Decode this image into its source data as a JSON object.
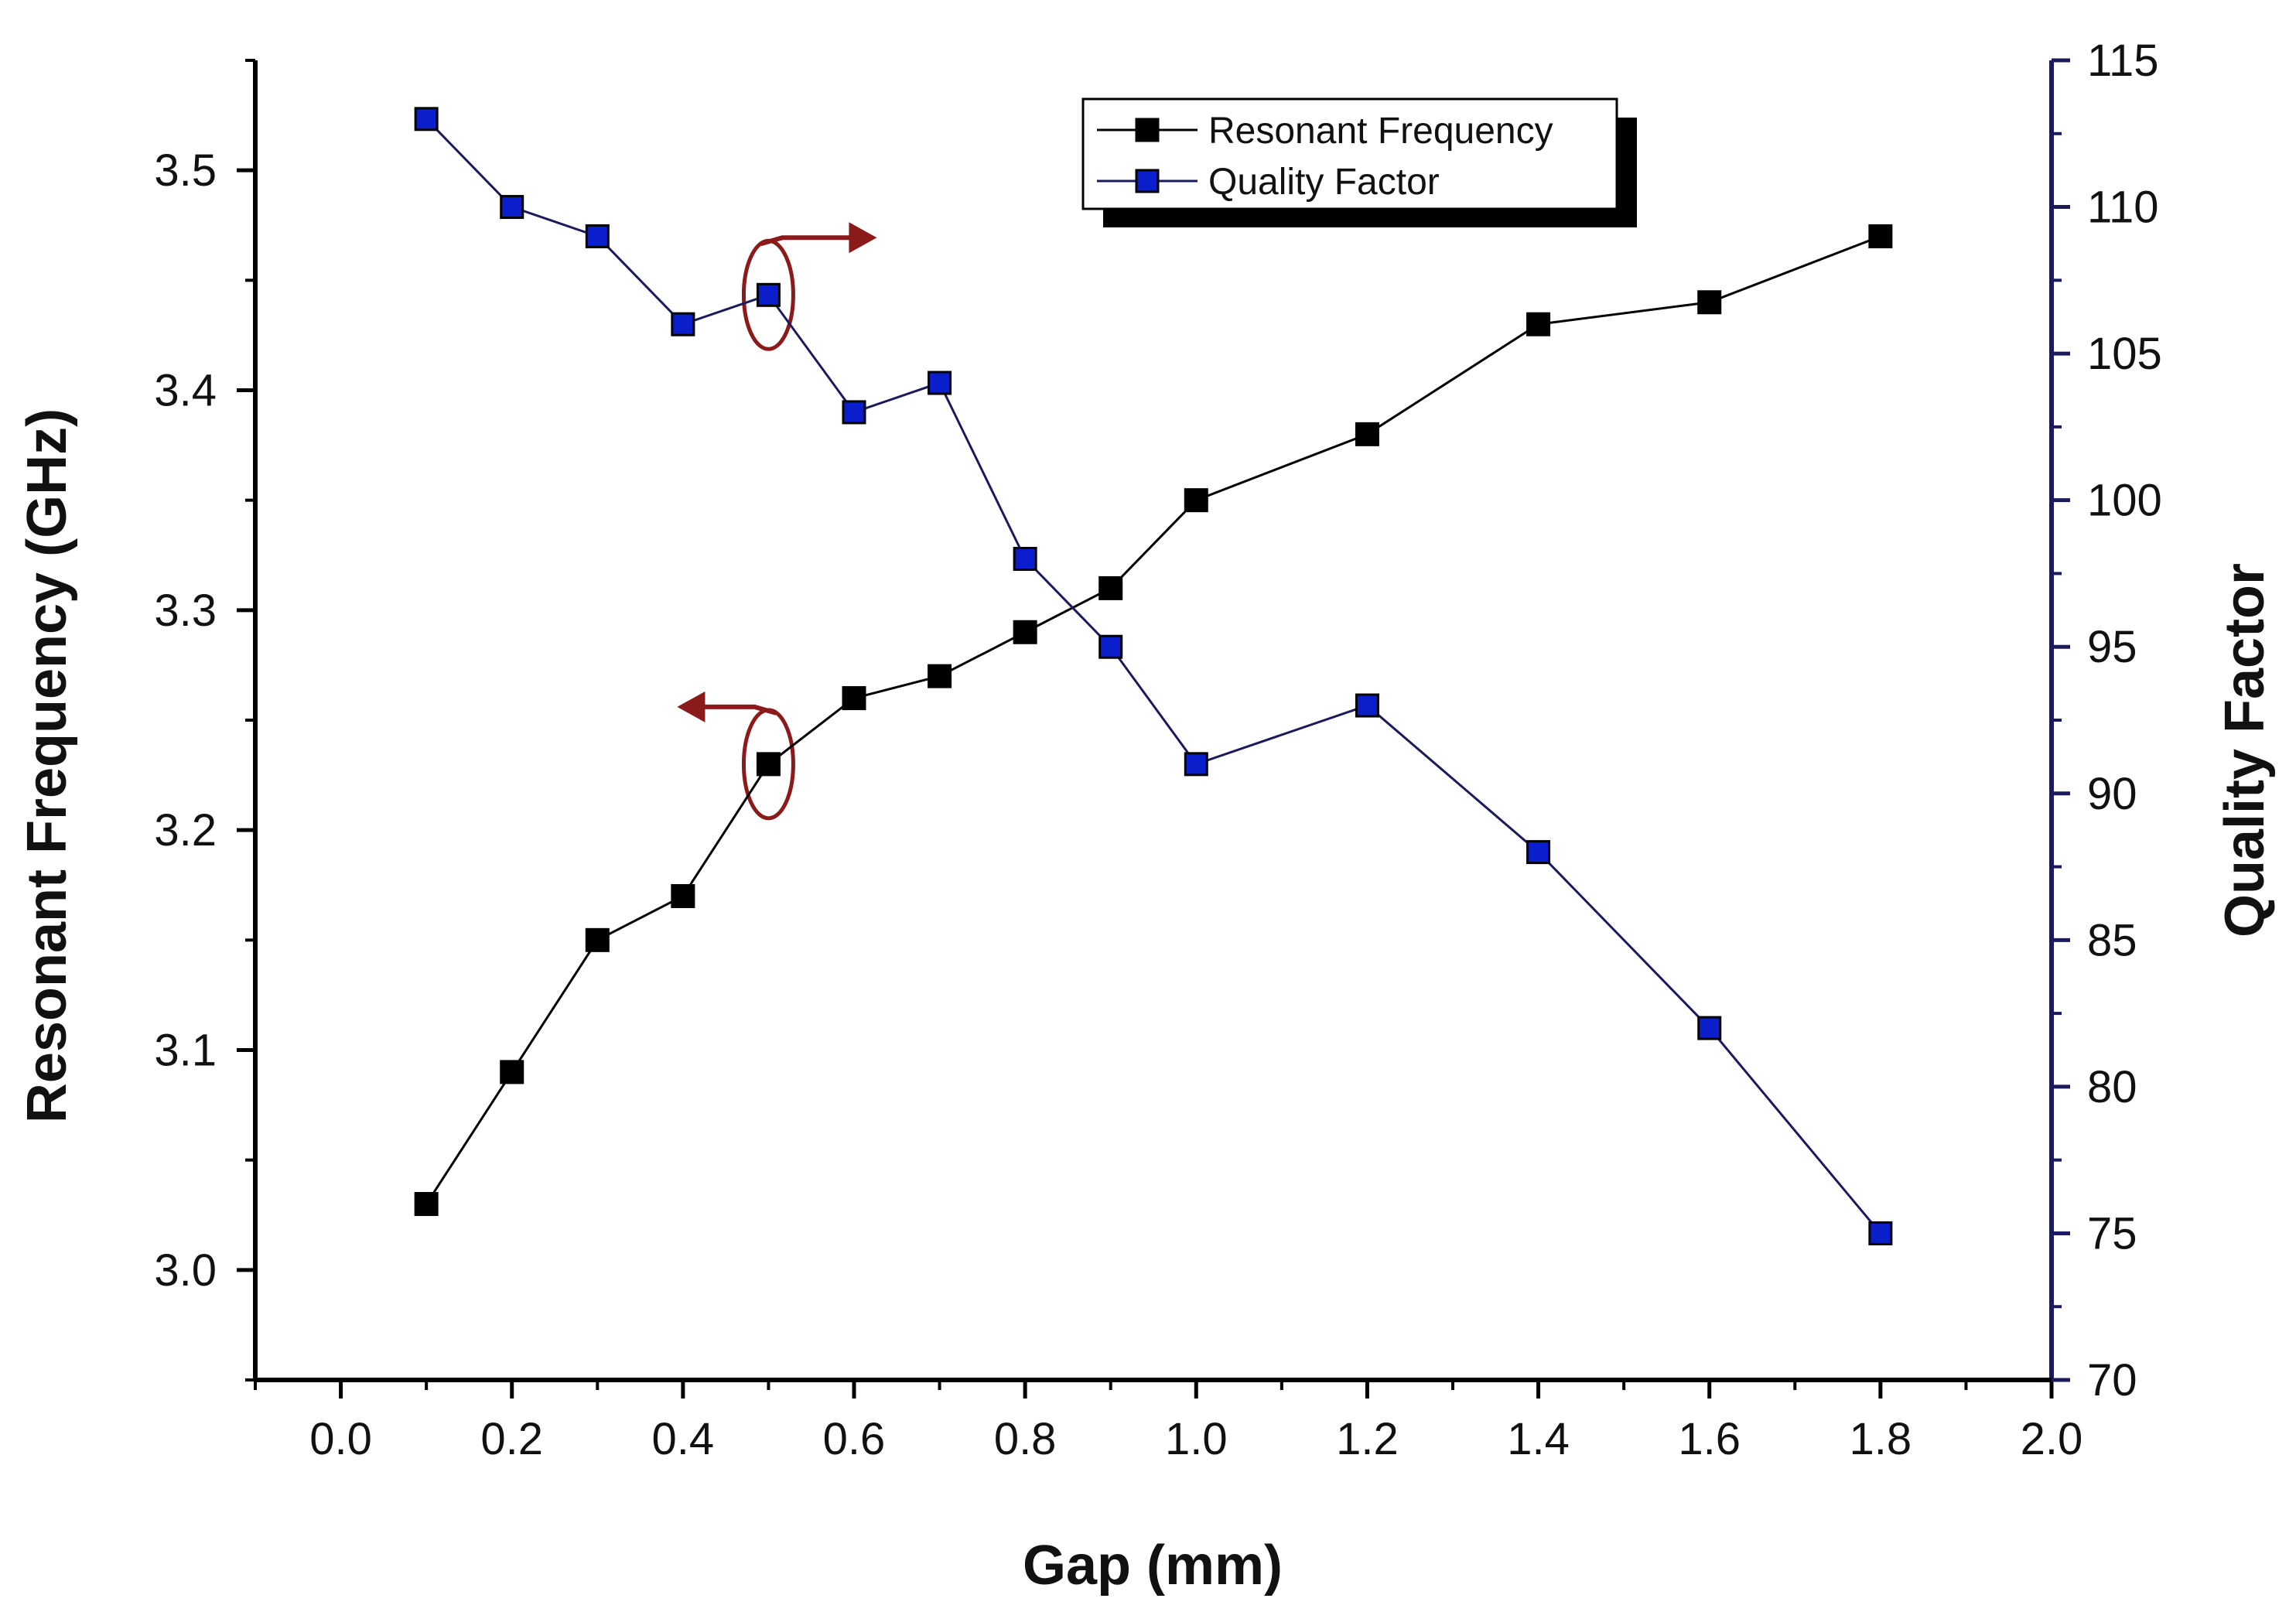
{
  "chart_data": {
    "type": "line",
    "title": "",
    "xlabel": "Gap (mm)",
    "ylabel": "Resonant Frequency (GHz)",
    "y2label": "Quality Factor",
    "xlim": [
      -0.1,
      2.0
    ],
    "ylim": [
      2.95,
      3.55
    ],
    "y2lim": [
      70,
      115
    ],
    "x_ticks": [
      0.0,
      0.2,
      0.4,
      0.6,
      0.8,
      1.0,
      1.2,
      1.4,
      1.6,
      1.8,
      2.0
    ],
    "x_tick_labels": [
      "0.0",
      "0.2",
      "0.4",
      "0.6",
      "0.8",
      "1.0",
      "1.2",
      "1.4",
      "1.6",
      "1.8",
      "2.0"
    ],
    "y_ticks": [
      3.0,
      3.1,
      3.2,
      3.3,
      3.4,
      3.5
    ],
    "y_tick_labels": [
      "3.0",
      "3.1",
      "3.2",
      "3.3",
      "3.4",
      "3.5"
    ],
    "y2_ticks": [
      70,
      75,
      80,
      85,
      90,
      95,
      100,
      105,
      110,
      115
    ],
    "y2_tick_labels": [
      "70",
      "75",
      "80",
      "85",
      "90",
      "95",
      "100",
      "105",
      "110",
      "115"
    ],
    "grid": false,
    "legend_position": "top-right",
    "series": [
      {
        "name": "Resonant Frequency",
        "axis": "left",
        "color": "#000000",
        "marker_color": "#000000",
        "x": [
          0.1,
          0.2,
          0.3,
          0.4,
          0.5,
          0.6,
          0.7,
          0.8,
          0.9,
          1.0,
          1.2,
          1.4,
          1.6,
          1.8
        ],
        "values": [
          3.03,
          3.09,
          3.15,
          3.17,
          3.23,
          3.26,
          3.27,
          3.29,
          3.31,
          3.35,
          3.38,
          3.43,
          3.44,
          3.47
        ]
      },
      {
        "name": "Quality Factor",
        "axis": "right",
        "color": "#1a1a5c",
        "marker_color": "#0a1ecc",
        "x": [
          0.1,
          0.2,
          0.3,
          0.4,
          0.5,
          0.6,
          0.7,
          0.8,
          0.9,
          1.0,
          1.2,
          1.4,
          1.6,
          1.8
        ],
        "values": [
          113,
          110,
          109,
          106,
          107,
          103,
          104,
          98,
          95,
          91,
          93,
          88,
          82,
          75
        ]
      }
    ],
    "annotations": [
      {
        "type": "ellipse-arrow",
        "target_series": "Quality Factor",
        "x": 0.5,
        "value": 107,
        "arrow_direction": "right",
        "color": "#8b1a1a"
      },
      {
        "type": "ellipse-arrow",
        "target_series": "Resonant Frequency",
        "x": 0.5,
        "value": 3.23,
        "arrow_direction": "left",
        "color": "#8b1a1a"
      }
    ],
    "colors": {
      "left_axis": "#000000",
      "right_axis": "#1a1a5c",
      "annotation": "#8b1a1a"
    }
  }
}
